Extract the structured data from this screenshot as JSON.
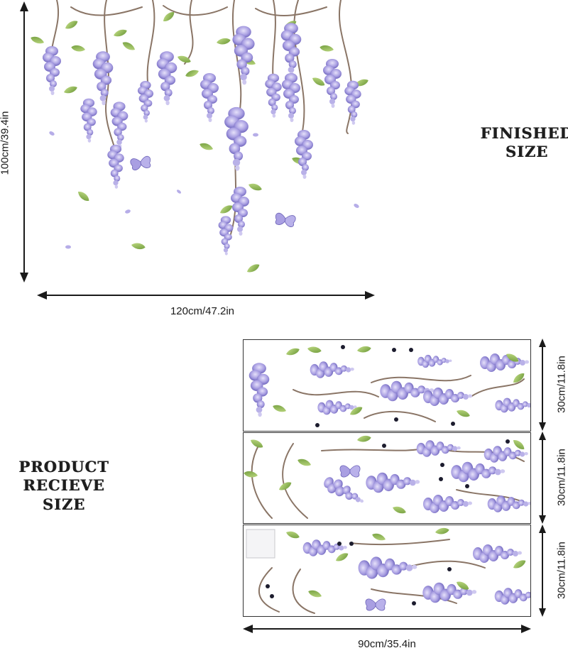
{
  "finished": {
    "label_line1": "FINISHED",
    "label_line2": "SIZE",
    "height_label": "100cm/39.4in",
    "width_label": "120cm/47.2in"
  },
  "product": {
    "label_line1": "PRODUCT",
    "label_line2": "RECIEVE SIZE",
    "sheet_heights": [
      "30cm/11.8in",
      "30cm/11.8in",
      "30cm/11.8in"
    ],
    "width_label": "90cm/35.4in"
  },
  "colors": {
    "petal_light": "#c9c2ee",
    "petal_mid": "#9e94dc",
    "petal_dark": "#6c63b8",
    "leaf": "#9cc45a",
    "leaf_dark": "#6e9a3a",
    "stem": "#8a7566",
    "arrow": "#1a1a1a"
  }
}
